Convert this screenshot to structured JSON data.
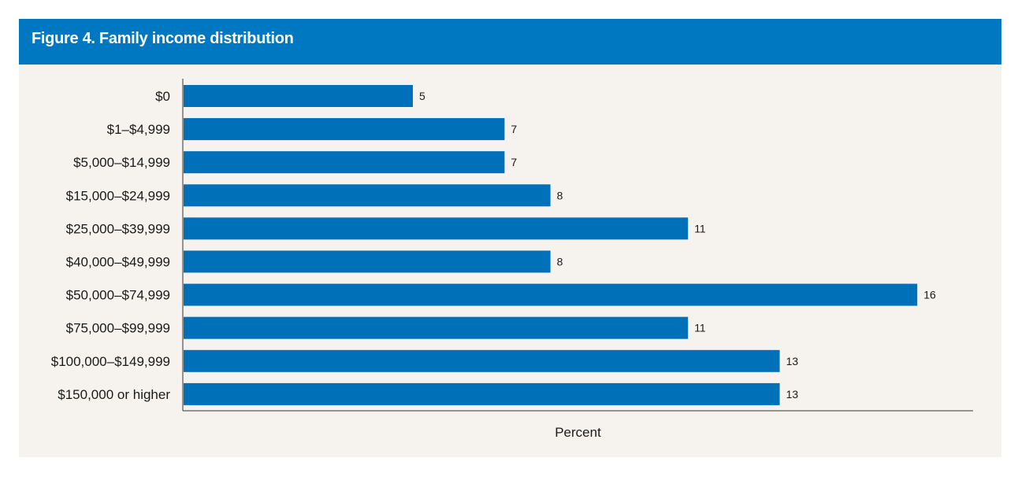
{
  "figure": {
    "title": "Figure 4. Family income distribution"
  },
  "colors": {
    "header": "#0078c1",
    "bar": "#0070b9",
    "panel": "#f6f3ee",
    "axis": "#333333"
  },
  "chart_data": {
    "type": "bar",
    "orientation": "horizontal",
    "title": "Figure 4. Family income distribution",
    "xlabel": "Percent",
    "ylabel": "",
    "categories": [
      "$0",
      "$1–$4,999",
      "$5,000–$14,999",
      "$15,000–$24,999",
      "$25,000–$39,999",
      "$40,000–$49,999",
      "$50,000–$74,999",
      "$75,000–$99,999",
      "$100,000–$149,999",
      "$150,000 or higher"
    ],
    "values": [
      5,
      7,
      7,
      8,
      11,
      8,
      16,
      11,
      13,
      13
    ],
    "xlim": [
      0,
      16
    ],
    "grid": false,
    "legend": "none"
  }
}
